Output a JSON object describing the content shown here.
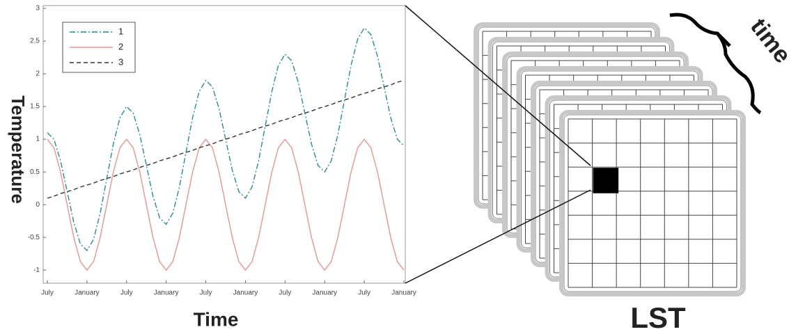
{
  "chart_data": {
    "type": "line",
    "xlabel": "Time",
    "ylabel": "Temperature",
    "x": [
      0,
      1,
      2,
      3,
      4,
      5,
      6,
      7,
      8,
      9,
      10,
      11,
      12,
      13,
      14,
      15,
      16,
      17,
      18,
      19,
      20,
      21,
      22,
      23,
      24,
      25,
      26,
      27,
      28,
      29,
      30,
      31,
      32,
      33,
      34,
      35,
      36,
      37,
      38,
      39,
      40,
      41,
      42,
      43,
      44,
      45,
      46,
      47,
      48,
      49,
      50,
      51,
      52,
      53,
      54
    ],
    "series": [
      {
        "name": "1",
        "color": "#2a8c8c",
        "dash": "dashdot",
        "values": [
          1.1,
          1.0,
          0.67,
          0.2,
          -0.27,
          -0.6,
          -0.7,
          -0.53,
          -0.13,
          0.4,
          0.93,
          1.33,
          1.5,
          1.4,
          1.07,
          0.6,
          0.13,
          -0.2,
          -0.3,
          -0.13,
          0.27,
          0.8,
          1.33,
          1.73,
          1.9,
          1.8,
          1.47,
          1.0,
          0.53,
          0.2,
          0.1,
          0.27,
          0.67,
          1.2,
          1.73,
          2.13,
          2.3,
          2.2,
          1.87,
          1.4,
          0.93,
          0.6,
          0.5,
          0.67,
          1.07,
          1.6,
          2.13,
          2.53,
          2.7,
          2.6,
          2.27,
          1.8,
          1.33,
          1.0,
          0.9
        ]
      },
      {
        "name": "2",
        "color": "#e89393",
        "dash": "solid",
        "values": [
          1,
          0.87,
          0.5,
          0,
          -0.5,
          -0.87,
          -1,
          -0.87,
          -0.5,
          0,
          0.5,
          0.87,
          1,
          0.87,
          0.5,
          0,
          -0.5,
          -0.87,
          -1,
          -0.87,
          -0.5,
          0,
          0.5,
          0.87,
          1,
          0.87,
          0.5,
          0,
          -0.5,
          -0.87,
          -1,
          -0.87,
          -0.5,
          0,
          0.5,
          0.87,
          1,
          0.87,
          0.5,
          0,
          -0.5,
          -0.87,
          -1,
          -0.87,
          -0.5,
          0,
          0.5,
          0.87,
          1,
          0.87,
          0.5,
          0,
          -0.5,
          -0.87,
          -1
        ]
      },
      {
        "name": "3",
        "color": "#333333",
        "dash": "dashed",
        "values": [
          0.1,
          0.13,
          0.17,
          0.2,
          0.23,
          0.27,
          0.3,
          0.33,
          0.37,
          0.4,
          0.43,
          0.47,
          0.5,
          0.53,
          0.57,
          0.6,
          0.63,
          0.67,
          0.7,
          0.73,
          0.77,
          0.8,
          0.83,
          0.87,
          0.9,
          0.93,
          0.97,
          1.0,
          1.03,
          1.07,
          1.1,
          1.13,
          1.17,
          1.2,
          1.23,
          1.27,
          1.3,
          1.33,
          1.37,
          1.4,
          1.43,
          1.47,
          1.5,
          1.53,
          1.57,
          1.6,
          1.63,
          1.67,
          1.7,
          1.73,
          1.77,
          1.8,
          1.83,
          1.87,
          1.9
        ]
      }
    ],
    "xlim": [
      0,
      54
    ],
    "xticks": [
      {
        "value": 0,
        "label": "July"
      },
      {
        "value": 6,
        "label": "January"
      },
      {
        "value": 12,
        "label": "July"
      },
      {
        "value": 18,
        "label": "January"
      },
      {
        "value": 24,
        "label": "July"
      },
      {
        "value": 30,
        "label": "January"
      },
      {
        "value": 36,
        "label": "July"
      },
      {
        "value": 42,
        "label": "January"
      },
      {
        "value": 48,
        "label": "July"
      },
      {
        "value": 54,
        "label": "January"
      }
    ],
    "ylim": [
      -1.2,
      3
    ],
    "yticks": [
      -1,
      -0.5,
      0,
      0.5,
      1,
      1.5,
      2,
      2.5,
      3
    ],
    "legend": "upper left"
  },
  "diagram": {
    "label": "LST",
    "time_label": "time"
  }
}
